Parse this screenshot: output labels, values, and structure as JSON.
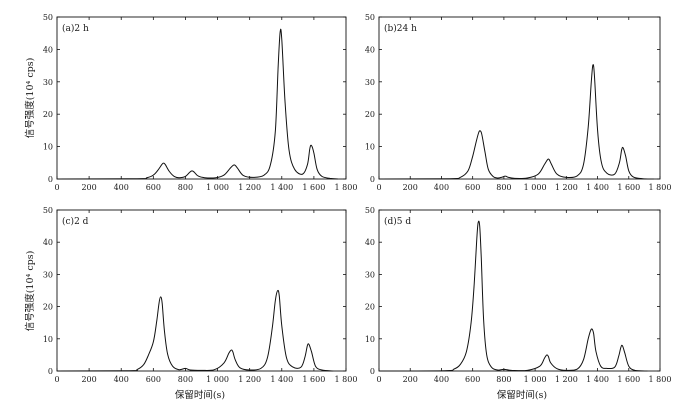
{
  "figure": {
    "xlabel": "保留时间(s)",
    "ylabel": "信号强度(10⁴ cps)"
  },
  "chart_data": [
    {
      "type": "line",
      "title": "(a)2 h",
      "xlabel": "保留时间(s)",
      "ylabel": "信号强度(10⁴ cps)",
      "xlim": [
        0,
        1800
      ],
      "ylim": [
        0,
        50
      ],
      "xticks": [
        0,
        200,
        400,
        600,
        800,
        1000,
        1200,
        1400,
        1600,
        1800
      ],
      "xtick_labels": [
        "0",
        "200",
        "400",
        "600",
        "800",
        "1 000",
        "1 200",
        "1 400",
        "1 600",
        "1 800"
      ],
      "yticks": [
        0,
        10,
        20,
        30,
        40,
        50
      ],
      "ytick_labels": [
        "0",
        "10",
        "20",
        "30",
        "40",
        "50"
      ],
      "grid": false,
      "series": [
        {
          "x": [
            0,
            500,
            560,
            600,
            630,
            655,
            665,
            675,
            700,
            730,
            760,
            800,
            825,
            840,
            855,
            880,
            920,
            990,
            1040,
            1080,
            1100,
            1110,
            1125,
            1160,
            1220,
            1290,
            1330,
            1360,
            1378,
            1390,
            1400,
            1420,
            1445,
            1480,
            1530,
            1560,
            1575,
            1585,
            1600,
            1620,
            1650,
            1700,
            1750
          ],
          "y": [
            0,
            0.1,
            0.4,
            1.2,
            2.8,
            4.6,
            4.9,
            4.4,
            2.3,
            0.8,
            0.4,
            0.8,
            2.0,
            2.5,
            2.1,
            0.9,
            0.4,
            0.4,
            1.2,
            3.4,
            4.3,
            4.2,
            3.3,
            1.1,
            0.5,
            1.2,
            4.5,
            15,
            35,
            45.5,
            43,
            24,
            9,
            3,
            1.5,
            4.5,
            9.5,
            10.3,
            8,
            3,
            0.8,
            0.2,
            0
          ]
        }
      ]
    },
    {
      "type": "line",
      "title": "(b)24 h",
      "xlabel": "保留时间(s)",
      "ylabel": "",
      "xlim": [
        0,
        1800
      ],
      "ylim": [
        0,
        50
      ],
      "xticks": [
        0,
        200,
        400,
        600,
        800,
        1000,
        1200,
        1400,
        1600,
        1800
      ],
      "xtick_labels": [
        "0",
        "200",
        "400",
        "600",
        "800",
        "1 000",
        "1 200",
        "1 400",
        "1 600",
        "1 800"
      ],
      "yticks": [
        0,
        10,
        20,
        30,
        40,
        50
      ],
      "ytick_labels": [
        "0",
        "10",
        "20",
        "30",
        "40",
        "50"
      ],
      "grid": false,
      "series": [
        {
          "x": [
            0,
            450,
            520,
            570,
            600,
            625,
            640,
            650,
            660,
            680,
            700,
            730,
            760,
            790,
            810,
            830,
            870,
            950,
            1020,
            1060,
            1080,
            1090,
            1105,
            1140,
            1200,
            1270,
            1310,
            1340,
            1360,
            1370,
            1380,
            1400,
            1425,
            1460,
            1510,
            1540,
            1555,
            1565,
            1580,
            1600,
            1630,
            1690,
            1760
          ],
          "y": [
            0,
            0.1,
            0.5,
            2.5,
            7,
            12,
            14.5,
            14.8,
            13.5,
            8,
            3,
            0.8,
            0.3,
            0.6,
            0.9,
            0.5,
            0.2,
            0.3,
            1.5,
            4.5,
            6,
            6,
            4.5,
            1.5,
            0.5,
            1,
            4.5,
            16,
            30,
            35.2,
            32,
            15,
            5,
            1.8,
            1.5,
            5,
            9.2,
            9.5,
            7,
            2.5,
            0.6,
            0.1,
            0
          ]
        }
      ]
    },
    {
      "type": "line",
      "title": "(c)2 d",
      "xlabel": "保留时间(s)",
      "ylabel": "信号强度(10⁴ cps)",
      "xlim": [
        0,
        1800
      ],
      "ylim": [
        0,
        50
      ],
      "xticks": [
        0,
        200,
        400,
        600,
        800,
        1000,
        1200,
        1400,
        1600,
        1800
      ],
      "xtick_labels": [
        "0",
        "200",
        "400",
        "600",
        "800",
        "1 000",
        "1 200",
        "1 400",
        "1 600",
        "1 800"
      ],
      "yticks": [
        0,
        10,
        20,
        30,
        40,
        50
      ],
      "ytick_labels": [
        "0",
        "10",
        "20",
        "30",
        "40",
        "50"
      ],
      "grid": false,
      "series": [
        {
          "x": [
            0,
            450,
            500,
            540,
            570,
            600,
            620,
            635,
            645,
            655,
            670,
            690,
            720,
            760,
            800,
            830,
            900,
            980,
            1040,
            1070,
            1085,
            1095,
            1110,
            1140,
            1200,
            1270,
            1310,
            1340,
            1360,
            1375,
            1385,
            1400,
            1430,
            1470,
            1520,
            1545,
            1560,
            1570,
            1585,
            1610,
            1650,
            1720
          ],
          "y": [
            0,
            0.1,
            0.5,
            2,
            5,
            9,
            15,
            21,
            23,
            21,
            12,
            5,
            1.5,
            0.4,
            0.8,
            0.3,
            0.2,
            0.4,
            2.5,
            5.5,
            6.5,
            6,
            3.5,
            1,
            0.3,
            0.8,
            4,
            13,
            22,
            25,
            23,
            14,
            4,
            1.2,
            1.2,
            4.5,
            8,
            8.2,
            6,
            1.5,
            0.3,
            0
          ]
        }
      ]
    },
    {
      "type": "line",
      "title": "(d)5 d",
      "xlabel": "保留时间(s)",
      "ylabel": "",
      "xlim": [
        0,
        1800
      ],
      "ylim": [
        0,
        50
      ],
      "xticks": [
        0,
        200,
        400,
        600,
        800,
        1000,
        1200,
        1400,
        1600,
        1800
      ],
      "xtick_labels": [
        "0",
        "200",
        "400",
        "600",
        "800",
        "1 000",
        "1 200",
        "1 400",
        "1 600",
        "1 800"
      ],
      "yticks": [
        0,
        10,
        20,
        30,
        40,
        50
      ],
      "ytick_labels": [
        "0",
        "10",
        "20",
        "30",
        "40",
        "50"
      ],
      "grid": false,
      "series": [
        {
          "x": [
            0,
            420,
            480,
            520,
            560,
            590,
            610,
            625,
            635,
            645,
            655,
            670,
            690,
            720,
            760,
            800,
            850,
            950,
            1030,
            1060,
            1075,
            1085,
            1100,
            1140,
            1200,
            1270,
            1310,
            1340,
            1355,
            1365,
            1375,
            1390,
            1420,
            1460,
            1510,
            1535,
            1550,
            1560,
            1575,
            1600,
            1640,
            1720
          ],
          "y": [
            0,
            0.1,
            0.6,
            2,
            6,
            15,
            27,
            40,
            46,
            45,
            35,
            16,
            5,
            1.2,
            0.3,
            0.5,
            0.2,
            0.2,
            1.5,
            4,
            5,
            4.5,
            2.5,
            0.7,
            0.2,
            0.6,
            3.5,
            10,
            12.5,
            13,
            11.5,
            6,
            1.5,
            0.8,
            1.2,
            4.5,
            7.5,
            7.8,
            5.5,
            1.5,
            0.2,
            0
          ]
        }
      ]
    }
  ]
}
